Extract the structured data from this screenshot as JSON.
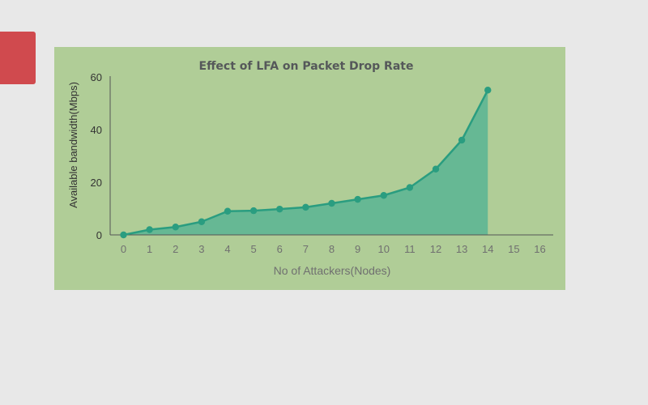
{
  "chart_data": {
    "type": "area",
    "title": "Effect of LFA on Packet Drop Rate",
    "xlabel": "No of Attackers(Nodes)",
    "ylabel": "Available bandwidth(Mbps)",
    "x": [
      0,
      1,
      2,
      3,
      4,
      5,
      6,
      7,
      8,
      9,
      10,
      11,
      12,
      13,
      14
    ],
    "y": [
      0,
      2,
      3,
      5,
      9,
      9.2,
      9.8,
      10.5,
      12,
      13.5,
      15,
      18,
      25,
      36,
      55
    ],
    "xticks": [
      "0",
      "1",
      "2",
      "3",
      "4",
      "5",
      "6",
      "7",
      "8",
      "9",
      "10",
      "11",
      "12",
      "13",
      "14",
      "15",
      "16"
    ],
    "yticks": [
      "0",
      "20",
      "40",
      "60"
    ],
    "xlim": [
      0,
      16
    ],
    "ylim": [
      0,
      60
    ],
    "grid": false,
    "legend": "none",
    "colors": {
      "line": "#2a9d80",
      "fill": "#66b894",
      "background": "#b0cd97",
      "axis": "#555555"
    }
  }
}
